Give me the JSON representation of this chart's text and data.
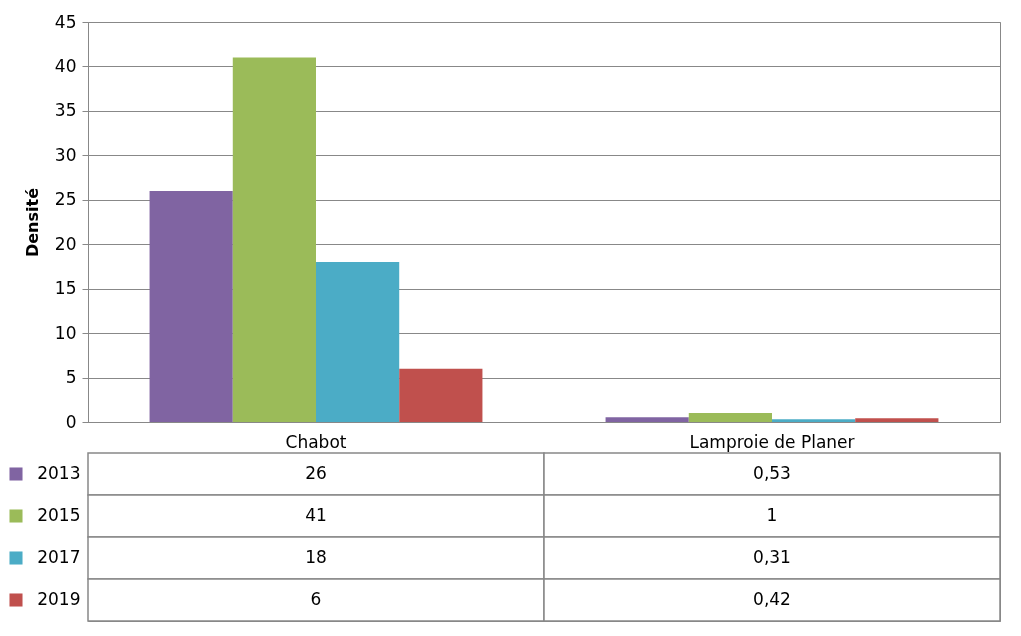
{
  "chart_data": {
    "type": "bar",
    "ylabel": "Densité",
    "categories": [
      "Chabot",
      "Lamproie de Planer"
    ],
    "series": [
      {
        "name": "2013",
        "color": "#8064a2",
        "values": [
          26,
          0.53
        ],
        "value_labels": [
          "26",
          "0,53"
        ]
      },
      {
        "name": "2015",
        "color": "#9bbb59",
        "values": [
          41,
          1
        ],
        "value_labels": [
          "41",
          "1"
        ]
      },
      {
        "name": "2017",
        "color": "#4bacc6",
        "values": [
          18,
          0.31
        ],
        "value_labels": [
          "18",
          "0,31"
        ]
      },
      {
        "name": "2019",
        "color": "#c0504d",
        "values": [
          6,
          0.42
        ],
        "value_labels": [
          "6",
          "0,42"
        ]
      }
    ],
    "ylim": [
      0,
      45
    ],
    "yticks": [
      0,
      5,
      10,
      15,
      20,
      25,
      30,
      35,
      40,
      45
    ],
    "grid": "y",
    "legend": "bottom"
  }
}
